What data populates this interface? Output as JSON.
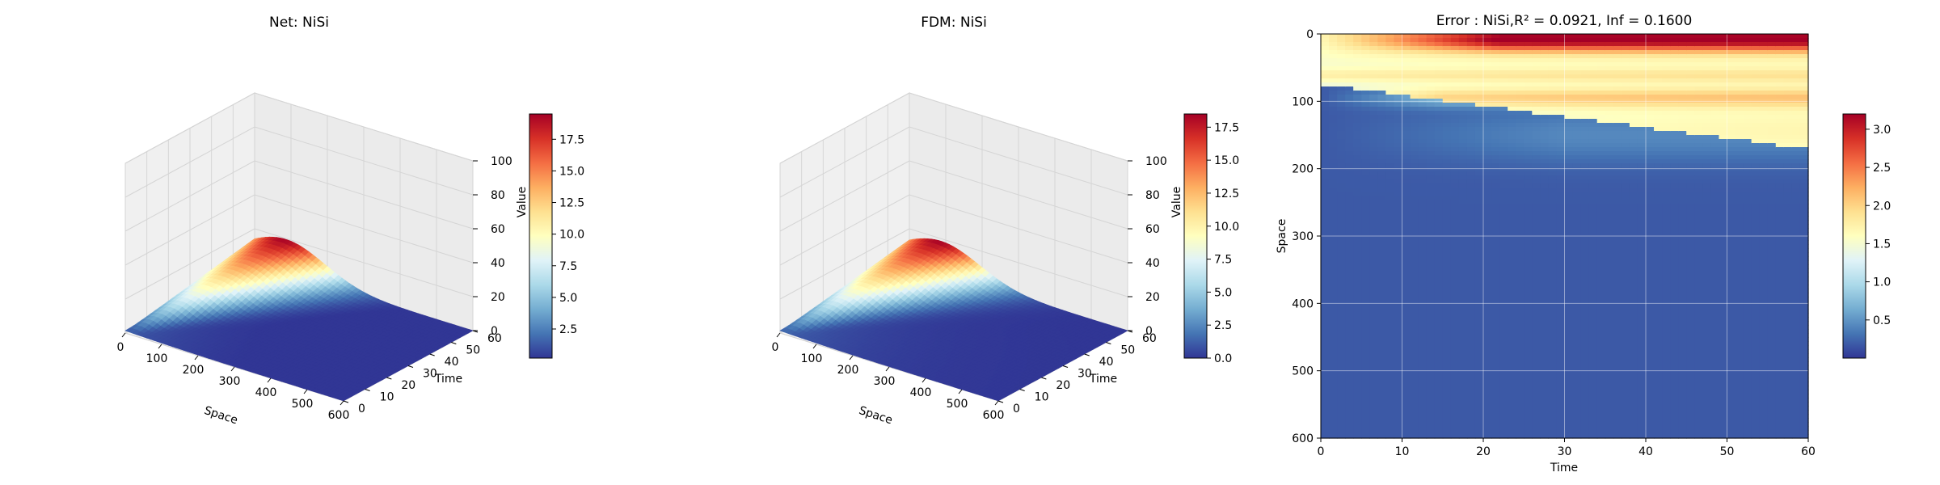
{
  "chart_data": [
    {
      "type": "surface3d",
      "title": "Net: NiSi",
      "xlabel": "Space",
      "ylabel": "Time",
      "zlabel": "Value",
      "xlim": [
        0,
        600
      ],
      "ylim": [
        0,
        60
      ],
      "zlim": [
        0,
        100
      ],
      "xticks": [
        "0",
        "100",
        "200",
        "300",
        "400",
        "500",
        "600"
      ],
      "yticks": [
        "0",
        "10",
        "20",
        "30",
        "40",
        "50",
        "60"
      ],
      "zticks": [
        "0",
        "20",
        "40",
        "60",
        "80",
        "100"
      ],
      "peak_value": 19.5,
      "colorbar": {
        "min": 0.2,
        "max": 19.5,
        "ticks": [
          "2.5",
          "5.0",
          "7.5",
          "10.0",
          "12.5",
          "15.0",
          "17.5"
        ]
      }
    },
    {
      "type": "surface3d",
      "title": "FDM: NiSi",
      "xlabel": "Space",
      "ylabel": "Time",
      "zlabel": "Value",
      "xlim": [
        0,
        600
      ],
      "ylim": [
        0,
        60
      ],
      "zlim": [
        0,
        100
      ],
      "xticks": [
        "0",
        "100",
        "200",
        "300",
        "400",
        "500",
        "600"
      ],
      "yticks": [
        "0",
        "10",
        "20",
        "30",
        "40",
        "50",
        "60"
      ],
      "zticks": [
        "0",
        "20",
        "40",
        "60",
        "80",
        "100"
      ],
      "peak_value": 18.5,
      "colorbar": {
        "min": 0.0,
        "max": 18.5,
        "ticks": [
          "0.0",
          "2.5",
          "5.0",
          "7.5",
          "10.0",
          "12.5",
          "15.0",
          "17.5"
        ]
      }
    },
    {
      "type": "heatmap",
      "title": "Error : NiSi,R² = 0.0921, Inf = 0.1600",
      "xlabel": "Time",
      "ylabel": "Space",
      "xlim": [
        0,
        60
      ],
      "ylim": [
        600,
        0
      ],
      "xticks": [
        "0",
        "10",
        "20",
        "30",
        "40",
        "50",
        "60"
      ],
      "yticks": [
        "0",
        "100",
        "200",
        "300",
        "400",
        "500",
        "600"
      ],
      "grid": true,
      "max_error": 3.2,
      "colorbar": {
        "min": 0.0,
        "max": 3.2,
        "ticks": [
          "0.5",
          "1.0",
          "1.5",
          "2.0",
          "2.5",
          "3.0"
        ]
      }
    }
  ]
}
